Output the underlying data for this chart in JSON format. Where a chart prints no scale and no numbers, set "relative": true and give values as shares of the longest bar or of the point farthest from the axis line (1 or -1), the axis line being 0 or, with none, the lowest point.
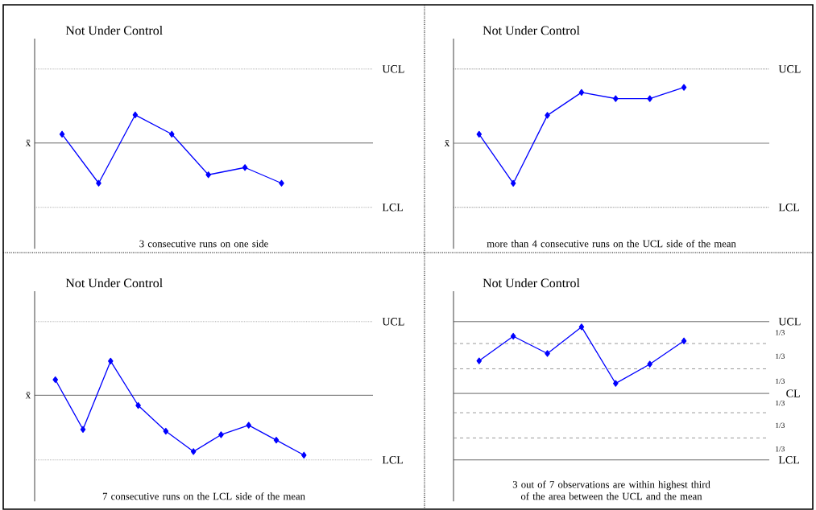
{
  "chart_data": [
    {
      "type": "line",
      "title": "Not Under Control",
      "ylabel": "x̄",
      "relative": true,
      "marker": "diamond",
      "line_style": "solid",
      "categories": [
        null,
        null,
        null,
        null,
        null,
        null,
        null
      ],
      "series": [
        {
          "color": "#0000ff",
          "values": [
            0.22,
            -1,
            0.7,
            0.22,
            -0.79,
            -0.61,
            -1
          ]
        }
      ],
      "ref_lines": [
        {
          "axis": "y",
          "value": 1.84,
          "label": "UCL",
          "line_style": "dotted",
          "color": "#808080"
        },
        {
          "axis": "y",
          "value": 0,
          "line_style": "solid",
          "color": "#404040"
        },
        {
          "axis": "y",
          "value": -1.6,
          "label": "LCL",
          "line_style": "dotted",
          "color": "#808080"
        }
      ],
      "annotations": [
        "3 consecutive runs on one side"
      ]
    },
    {
      "type": "line",
      "title": "Not Under Control",
      "ylabel": "x̄",
      "relative": true,
      "marker": "diamond",
      "line_style": "solid",
      "categories": [
        null,
        null,
        null,
        null,
        null,
        null,
        null
      ],
      "series": [
        {
          "color": "#0000ff",
          "values": [
            0.16,
            -0.72,
            0.5,
            0.91,
            0.8,
            0.8,
            1
          ]
        }
      ],
      "ref_lines": [
        {
          "axis": "y",
          "value": 1.33,
          "label": "UCL",
          "line_style": "dotted",
          "color": "#404040"
        },
        {
          "axis": "y",
          "value": 0,
          "line_style": "solid",
          "color": "#606060"
        },
        {
          "axis": "y",
          "value": -1.15,
          "label": "LCL",
          "line_style": "dotted",
          "color": "#404040"
        }
      ],
      "annotations": [
        "more than 4 consecutive runs on the UCL side of the mean"
      ]
    },
    {
      "type": "line",
      "title": "Not Under Control",
      "ylabel": "x̄",
      "relative": true,
      "marker": "diamond",
      "line_style": "solid",
      "categories": [
        null,
        null,
        null,
        null,
        null,
        null,
        null,
        null,
        null,
        null
      ],
      "series": [
        {
          "color": "#0000ff",
          "values": [
            0.26,
            -0.57,
            0.57,
            -0.17,
            -0.6,
            -0.94,
            -0.66,
            -0.5,
            -0.75,
            -1
          ]
        }
      ],
      "ref_lines": [
        {
          "axis": "y",
          "value": 1.23,
          "label": "UCL",
          "line_style": "dotted",
          "color": "#808080"
        },
        {
          "axis": "y",
          "value": 0,
          "line_style": "solid",
          "color": "#404040"
        },
        {
          "axis": "y",
          "value": -1.08,
          "label": "LCL",
          "line_style": "dotted",
          "color": "#808080"
        }
      ],
      "annotations": [
        "7 consecutive runs on the LCL side of the mean"
      ]
    },
    {
      "type": "line",
      "title": "Not Under Control",
      "relative": true,
      "marker": "diamond",
      "line_style": "solid",
      "categories": [
        null,
        null,
        null,
        null,
        null,
        null,
        null
      ],
      "series": [
        {
          "color": "#0000ff",
          "values": [
            0.49,
            0.86,
            0.6,
            1,
            0.15,
            0.44,
            0.79
          ]
        }
      ],
      "ref_lines": [
        {
          "axis": "y",
          "value": 1.08,
          "label": "UCL",
          "line_style": "solid",
          "color": "#404040"
        },
        {
          "axis": "y",
          "value": 0.75,
          "line_style": "dashed",
          "color": "#808080"
        },
        {
          "axis": "y",
          "value": 0.37,
          "line_style": "dashed",
          "color": "#808080"
        },
        {
          "axis": "y",
          "value": 0,
          "label": "CL",
          "line_style": "solid",
          "color": "#404040"
        },
        {
          "axis": "y",
          "value": -0.29,
          "line_style": "dashed",
          "color": "#808080"
        },
        {
          "axis": "y",
          "value": -0.67,
          "line_style": "dashed",
          "color": "#808080"
        },
        {
          "axis": "y",
          "value": -1.0,
          "label": "LCL",
          "line_style": "solid",
          "color": "#404040"
        }
      ],
      "annotations": [
        "3 out of 7 observations are within highest third of the area between the UCL and the mean",
        "1/3",
        "1/3",
        "1/3",
        "1/3",
        "1/3",
        "1/3"
      ]
    }
  ]
}
